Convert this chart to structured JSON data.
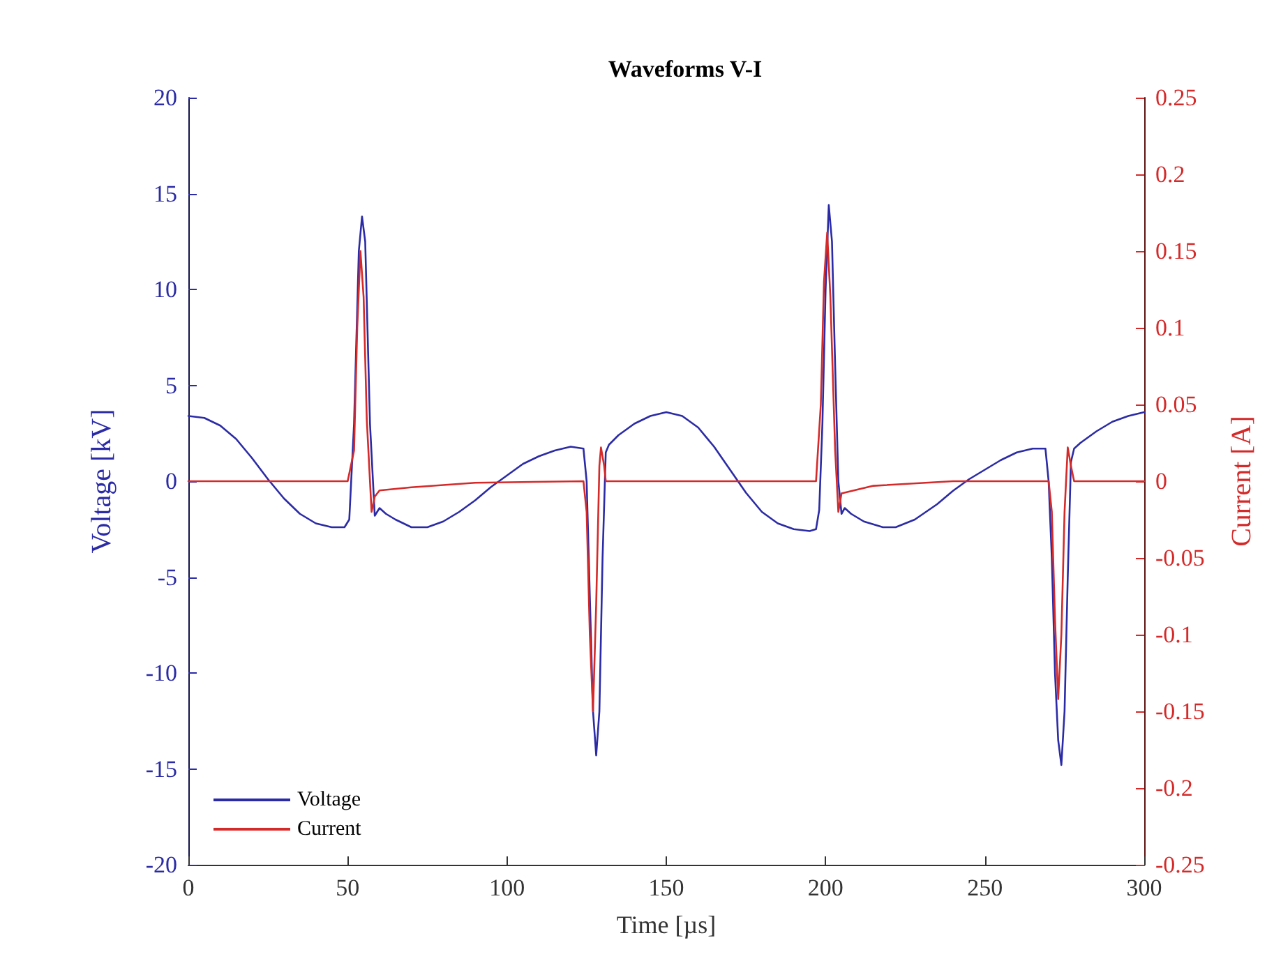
{
  "chart_data": {
    "type": "line",
    "title": "Waveforms V-I",
    "xlabel": "Time [µs]",
    "ylabel": "Voltage [kV]",
    "y2label": "Current [A]",
    "xlim": [
      0,
      300
    ],
    "xticks": [
      0,
      50,
      100,
      150,
      200,
      250,
      300
    ],
    "ylim": [
      -20,
      20
    ],
    "yticks": [
      -20,
      -15,
      -10,
      -5,
      0,
      5,
      10,
      15,
      20
    ],
    "y2lim": [
      -0.25,
      0.25
    ],
    "y2ticks": [
      -0.25,
      -0.2,
      -0.15,
      -0.1,
      -0.05,
      0,
      0.05,
      0.1,
      0.15,
      0.2,
      0.25
    ],
    "grid": false,
    "legend": "bottom left",
    "marker": "none",
    "line_style": "solid",
    "series": [
      {
        "name": "Voltage",
        "color": "#2b2ba6",
        "x": [
          0,
          5,
          10,
          15,
          20,
          25,
          30,
          35,
          40,
          45,
          49,
          50.5,
          52,
          53.5,
          54.5,
          55.5,
          57,
          58.5,
          60,
          62,
          65,
          70,
          75,
          80,
          85,
          90,
          95,
          100,
          105,
          110,
          115,
          120,
          124,
          125,
          126,
          127,
          128,
          129,
          130,
          131,
          132,
          135,
          140,
          145,
          150,
          155,
          160,
          165,
          170,
          175,
          180,
          185,
          190,
          195,
          197,
          198,
          199,
          200,
          201,
          202,
          203,
          204,
          205,
          206,
          208,
          212,
          218,
          222,
          228,
          235,
          240,
          245,
          250,
          255,
          260,
          265,
          269,
          270,
          271,
          272,
          273,
          274,
          275,
          276,
          277,
          278,
          280,
          285,
          290,
          295,
          300
        ],
        "values": [
          3.4,
          3.3,
          2.9,
          2.2,
          1.2,
          0.1,
          -0.9,
          -1.7,
          -2.2,
          -2.4,
          -2.4,
          -2.0,
          3,
          12,
          13.8,
          12.5,
          3,
          -1.8,
          -1.4,
          -1.7,
          -2.0,
          -2.4,
          -2.4,
          -2.1,
          -1.6,
          -1.0,
          -0.3,
          0.3,
          0.9,
          1.3,
          1.6,
          1.8,
          1.7,
          0,
          -6,
          -12,
          -14.3,
          -12,
          -4,
          1.5,
          1.9,
          2.4,
          3.0,
          3.4,
          3.6,
          3.4,
          2.8,
          1.8,
          0.6,
          -0.6,
          -1.6,
          -2.2,
          -2.5,
          -2.6,
          -2.5,
          -1.5,
          3,
          10,
          14.4,
          12.5,
          6,
          0,
          -1.7,
          -1.4,
          -1.7,
          -2.1,
          -2.4,
          -2.4,
          -2.0,
          -1.2,
          -0.5,
          0.1,
          0.6,
          1.1,
          1.5,
          1.7,
          1.7,
          0,
          -4,
          -10,
          -13.5,
          -14.8,
          -12,
          -5,
          1,
          1.7,
          2.0,
          2.6,
          3.1,
          3.4,
          3.6
        ]
      },
      {
        "name": "Current",
        "color": "#d42a2a",
        "axis": "y2",
        "x": [
          0,
          50,
          52,
          53,
          54,
          55,
          56,
          57.5,
          58.5,
          60,
          70,
          90,
          124,
          125,
          126,
          127,
          128,
          129,
          129.5,
          130.5,
          131,
          197,
          198.5,
          199.5,
          200.5,
          201.5,
          203,
          204,
          205,
          215,
          240,
          270,
          271,
          272,
          273,
          274,
          275,
          276,
          277,
          278,
          300
        ],
        "values": [
          0,
          0,
          0.02,
          0.1,
          0.15,
          0.12,
          0.04,
          -0.02,
          -0.01,
          -0.006,
          -0.004,
          -0.001,
          0,
          -0.02,
          -0.1,
          -0.15,
          -0.08,
          0.01,
          0.022,
          0.01,
          0,
          0,
          0.05,
          0.13,
          0.162,
          0.12,
          0.02,
          -0.02,
          -0.008,
          -0.003,
          0,
          0,
          -0.02,
          -0.09,
          -0.142,
          -0.1,
          -0.02,
          0.022,
          0.01,
          0,
          0
        ]
      }
    ]
  }
}
